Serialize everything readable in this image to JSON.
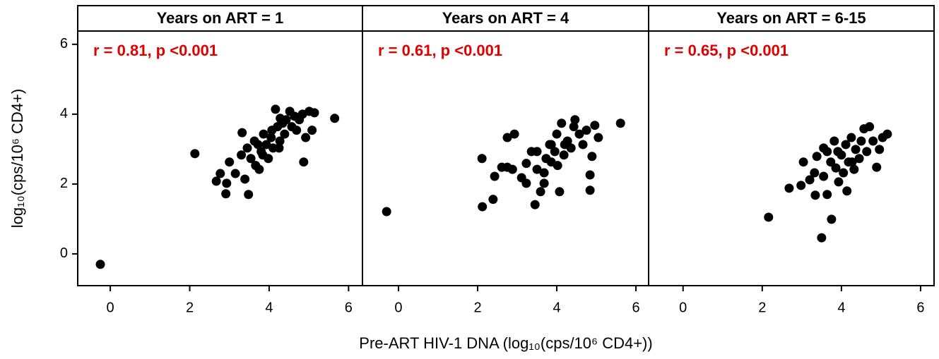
{
  "chart_data": [
    {
      "type": "scatter",
      "title": "Years on ART = 1",
      "annotation": "r = 0.81, p <0.001",
      "annotation_color": "#e00000",
      "color": "#000000",
      "ylabel": "log₁₀(cps/10⁶ CD4+)",
      "x": [
        -0.25,
        2.13,
        2.67,
        2.77,
        2.93,
        2.91,
        3.0,
        3.15,
        3.3,
        3.39,
        3.48,
        3.32,
        3.45,
        3.54,
        3.63,
        3.66,
        3.75,
        3.8,
        3.86,
        3.93,
        3.98,
        4.05,
        4.1,
        4.16,
        4.21,
        4.27,
        4.34,
        4.39,
        4.43,
        4.52,
        4.57,
        4.64,
        4.69,
        4.76,
        4.84,
        4.87,
        4.92,
        5.01,
        5.08,
        5.14,
        5.65,
        4.25,
        3.84,
        3.72,
        4.07,
        4.28
      ],
      "y": [
        -0.3,
        2.87,
        2.08,
        2.3,
        2.02,
        1.72,
        2.63,
        2.3,
        2.83,
        2.14,
        1.7,
        3.47,
        3.03,
        2.73,
        3.23,
        2.53,
        2.42,
        2.93,
        3.43,
        3.13,
        2.73,
        3.33,
        3.03,
        4.14,
        3.64,
        3.23,
        3.74,
        3.43,
        3.84,
        4.08,
        3.64,
        3.94,
        3.54,
        3.84,
        4.0,
        2.63,
        3.33,
        4.08,
        3.54,
        4.04,
        3.88,
        3.03,
        2.83,
        3.13,
        3.54,
        3.88
      ],
      "xlim": [
        -0.82,
        6.35
      ],
      "ylim": [
        -0.91,
        6.38
      ],
      "xticks": [
        0,
        2,
        4,
        6
      ],
      "yticks": [
        0,
        2,
        4,
        6
      ]
    },
    {
      "type": "scatter",
      "title": "Years on ART = 4",
      "annotation": "r = 0.61, p <0.001",
      "annotation_color": "#e00000",
      "color": "#000000",
      "xlabel": "Pre-ART HIV-1 DNA (log₁₀(cps/10⁶ CD4+))",
      "x": [
        -0.3,
        2.11,
        2.12,
        2.39,
        2.43,
        2.61,
        2.75,
        2.93,
        2.75,
        2.88,
        3.11,
        3.23,
        3.36,
        3.45,
        3.59,
        3.5,
        3.68,
        3.73,
        3.82,
        3.86,
        3.95,
        4.0,
        4.07,
        4.12,
        4.18,
        4.27,
        4.36,
        4.43,
        4.46,
        4.57,
        4.66,
        4.75,
        4.84,
        4.84,
        4.89,
        4.96,
        5.05,
        5.61,
        3.5,
        4.02,
        3.68,
        4.2,
        3.86,
        3.23
      ],
      "y": [
        1.21,
        2.73,
        1.35,
        1.56,
        2.22,
        2.48,
        3.33,
        3.43,
        2.48,
        2.42,
        2.18,
        2.59,
        2.93,
        1.41,
        1.78,
        2.42,
        2.02,
        2.73,
        3.13,
        2.63,
        2.93,
        3.43,
        1.78,
        3.74,
        2.83,
        3.23,
        3.03,
        3.64,
        3.84,
        3.43,
        3.13,
        3.54,
        2.26,
        1.82,
        2.79,
        3.68,
        3.33,
        3.74,
        2.93,
        2.53,
        2.32,
        3.13,
        3.13,
        2.02
      ],
      "xlim": [
        -0.91,
        6.32
      ],
      "ylim": [
        -0.91,
        6.38
      ],
      "xticks": [
        0,
        2,
        4,
        6
      ]
    },
    {
      "type": "scatter",
      "title": "Years on ART = 6-15",
      "annotation": "r = 0.65, p <0.001",
      "annotation_color": "#e00000",
      "color": "#000000",
      "x": [
        2.16,
        2.68,
        2.98,
        3.04,
        3.2,
        3.32,
        3.38,
        3.34,
        3.5,
        3.55,
        3.64,
        3.73,
        3.75,
        3.82,
        3.86,
        3.93,
        4.0,
        4.05,
        4.11,
        4.14,
        4.18,
        4.25,
        4.32,
        4.36,
        4.45,
        4.5,
        4.57,
        4.64,
        4.71,
        4.8,
        4.89,
        4.96,
        5.04,
        5.16,
        3.91,
        3.64,
        4.27,
        3.55
      ],
      "y": [
        1.05,
        1.88,
        1.96,
        2.63,
        2.12,
        2.32,
        2.79,
        1.68,
        0.46,
        2.22,
        1.7,
        2.63,
        0.99,
        3.23,
        2.46,
        2.06,
        2.83,
        2.32,
        3.13,
        1.8,
        2.63,
        3.33,
        2.42,
        2.99,
        2.73,
        3.23,
        3.58,
        2.93,
        3.64,
        3.23,
        2.48,
        2.99,
        3.33,
        3.43,
        2.93,
        2.93,
        2.63,
        3.03
      ],
      "xlim": [
        -0.87,
        6.34
      ],
      "ylim": [
        -0.91,
        6.38
      ],
      "xticks": [
        0,
        2,
        4,
        6
      ]
    }
  ]
}
